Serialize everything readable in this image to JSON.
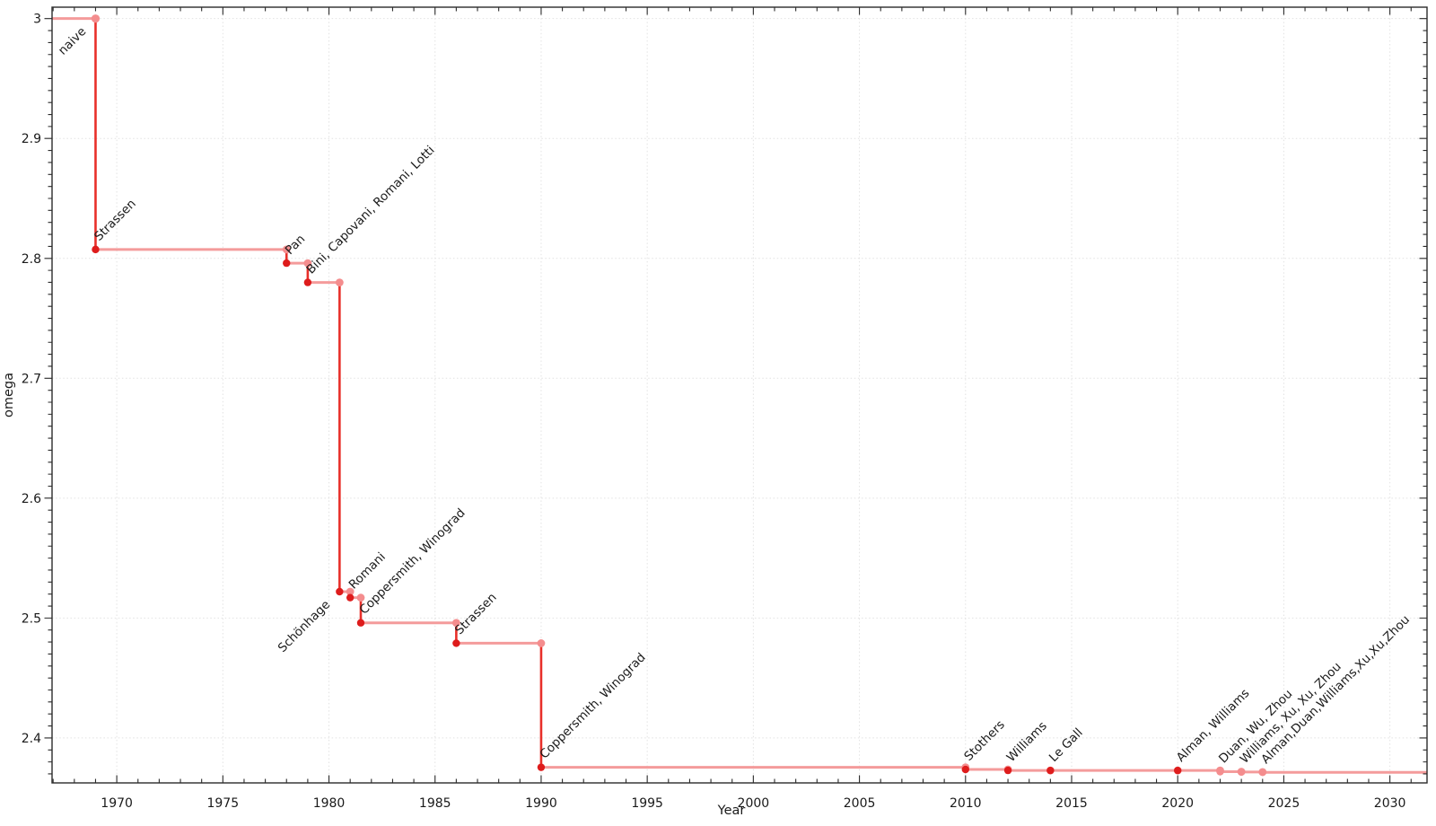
{
  "chart_data": {
    "type": "line",
    "subtype": "step-drop",
    "title": "",
    "xlabel": "Year",
    "ylabel": "omega",
    "xlim": [
      1966.95,
      2031.75
    ],
    "ylim": [
      2.3625,
      3.0095
    ],
    "x_major_ticks": [
      1970,
      1975,
      1980,
      1985,
      1990,
      1995,
      2000,
      2005,
      2010,
      2015,
      2020,
      2025,
      2030
    ],
    "x_minor_step": 1,
    "y_major_ticks": [
      2.4,
      2.5,
      2.6,
      2.7,
      2.8,
      2.9,
      3.0
    ],
    "y_tick_labels": [
      "2.4",
      "2.5",
      "2.6",
      "2.7",
      "2.8",
      "2.9",
      "3"
    ],
    "y_minor_step": 0.01,
    "grid": "dotted major gridlines, both axes",
    "legend": "none",
    "colors": {
      "step_horizontal": "#f49b9b",
      "step_vertical": "#e8302a",
      "marker_main": "#de1c1c",
      "marker_corner": "#f48d8e",
      "marker_recent": "#f48d8e",
      "label_text": "#1a1a1a",
      "label_text_recent": "#979797",
      "grid_line": "#e2e2e2",
      "axis": "#2b2b2b"
    },
    "events": [
      {
        "year": 1969,
        "omega": 3.0,
        "label": "naive",
        "label_anchor": "end"
      },
      {
        "year": 1969,
        "omega": 2.8074,
        "label": "Strassen"
      },
      {
        "year": 1978,
        "omega": 2.796,
        "label": "Pan"
      },
      {
        "year": 1979,
        "omega": 2.7799,
        "label": "Bini, Capovani, Romani, Lotti"
      },
      {
        "year": 1980.5,
        "omega": 2.522,
        "label": "Schönhage",
        "label_anchor": "end"
      },
      {
        "year": 1981,
        "omega": 2.517,
        "label": "Romani"
      },
      {
        "year": 1981.5,
        "omega": 2.496,
        "label": "Coppersmith, Winograd"
      },
      {
        "year": 1986,
        "omega": 2.479,
        "label": "Strassen"
      },
      {
        "year": 1990,
        "omega": 2.3755,
        "label": "Coppersmith, Winograd"
      },
      {
        "year": 2010,
        "omega": 2.3737,
        "label": "Stothers"
      },
      {
        "year": 2012,
        "omega": 2.3729,
        "label": "Williams"
      },
      {
        "year": 2014,
        "omega": 2.3728639,
        "label": "Le Gall"
      },
      {
        "year": 2020,
        "omega": 2.3728596,
        "label": "Alman, Williams"
      },
      {
        "year": 2022,
        "omega": 2.371866,
        "label": "Duan, Wu, Zhou",
        "recent": true
      },
      {
        "year": 2023,
        "omega": 2.371552,
        "label": "Williams, Xu, Xu, Zhou",
        "recent": true
      },
      {
        "year": 2024,
        "omega": 2.371339,
        "label": "Alman,Duan,Williams,Xu,Xu,Zhou",
        "recent": true
      }
    ]
  }
}
